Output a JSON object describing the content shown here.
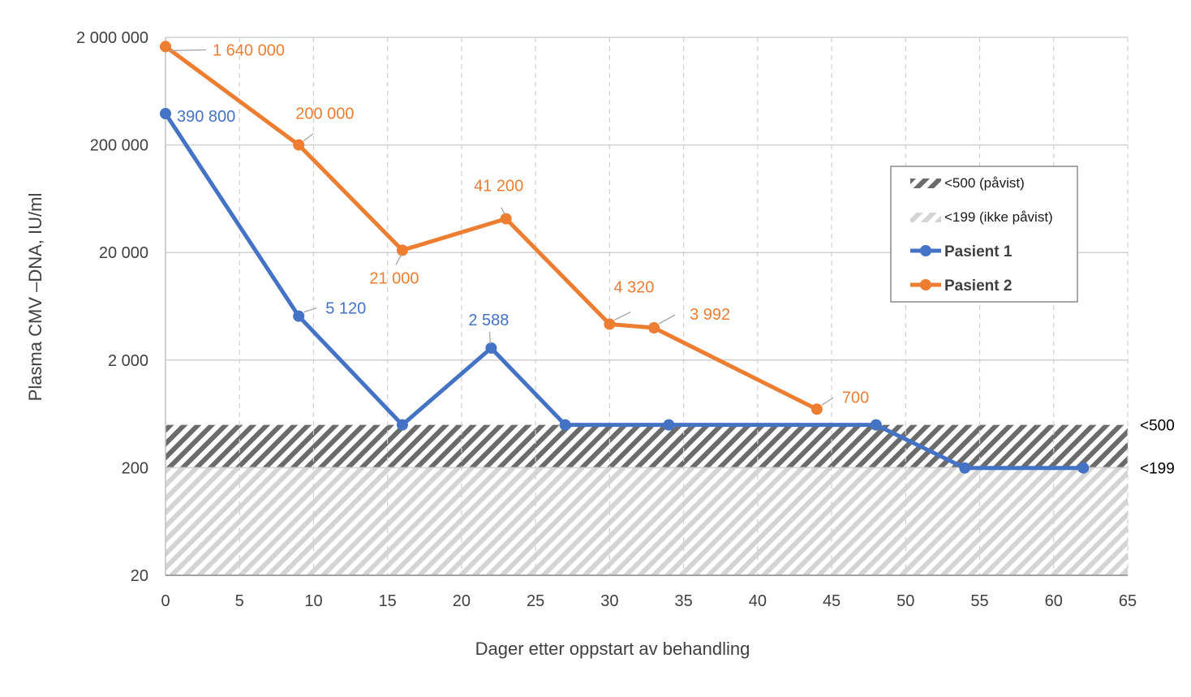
{
  "chart_data": {
    "type": "line",
    "title": "",
    "xlabel": "Dager etter oppstart av behandling",
    "ylabel": "Plasma CMV –DNA, IU/ml",
    "x_ticks": [
      "0",
      "5",
      "10",
      "15",
      "20",
      "25",
      "30",
      "35",
      "40",
      "45",
      "50",
      "55",
      "60",
      "65"
    ],
    "xlim": [
      0,
      65
    ],
    "y_scale": "log",
    "ylim": [
      20,
      2000000
    ],
    "y_ticks": [
      {
        "value": 20,
        "label": "20"
      },
      {
        "value": 200,
        "label": "200"
      },
      {
        "value": 2000,
        "label": "2 000"
      },
      {
        "value": 20000,
        "label": "20 000"
      },
      {
        "value": 200000,
        "label": "200 000"
      },
      {
        "value": 2000000,
        "label": "2 000 000"
      }
    ],
    "grid": true,
    "legend_position": "right",
    "bands": [
      {
        "name": "<500 (påvist)",
        "from": 200,
        "to": 500,
        "color": "#6b6b6b",
        "edge_label": "<500"
      },
      {
        "name": "<199 (ikke påvist)",
        "from": 20,
        "to": 200,
        "color": "#cfcfcf",
        "edge_label": "<199"
      }
    ],
    "series": [
      {
        "name": "Pasient 1",
        "color": "#4472c4",
        "points": [
          {
            "x": 0,
            "y": 390800,
            "label": "390 800"
          },
          {
            "x": 9,
            "y": 5120,
            "label": "5 120"
          },
          {
            "x": 16,
            "y": 500,
            "label": ""
          },
          {
            "x": 22,
            "y": 2588,
            "label": "2 588"
          },
          {
            "x": 27,
            "y": 500,
            "label": ""
          },
          {
            "x": 34,
            "y": 500,
            "label": ""
          },
          {
            "x": 48,
            "y": 500,
            "label": ""
          },
          {
            "x": 54,
            "y": 199,
            "label": ""
          },
          {
            "x": 62,
            "y": 199,
            "label": ""
          }
        ]
      },
      {
        "name": "Pasient 2",
        "color": "#ed7d31",
        "points": [
          {
            "x": 0,
            "y": 1640000,
            "label": "1 640 000"
          },
          {
            "x": 9,
            "y": 200000,
            "label": "200 000"
          },
          {
            "x": 16,
            "y": 21000,
            "label": "21 000"
          },
          {
            "x": 23,
            "y": 41200,
            "label": "41 200"
          },
          {
            "x": 30,
            "y": 4320,
            "label": "4 320"
          },
          {
            "x": 33,
            "y": 3992,
            "label": "3 992"
          },
          {
            "x": 44,
            "y": 700,
            "label": "700"
          }
        ]
      }
    ]
  }
}
